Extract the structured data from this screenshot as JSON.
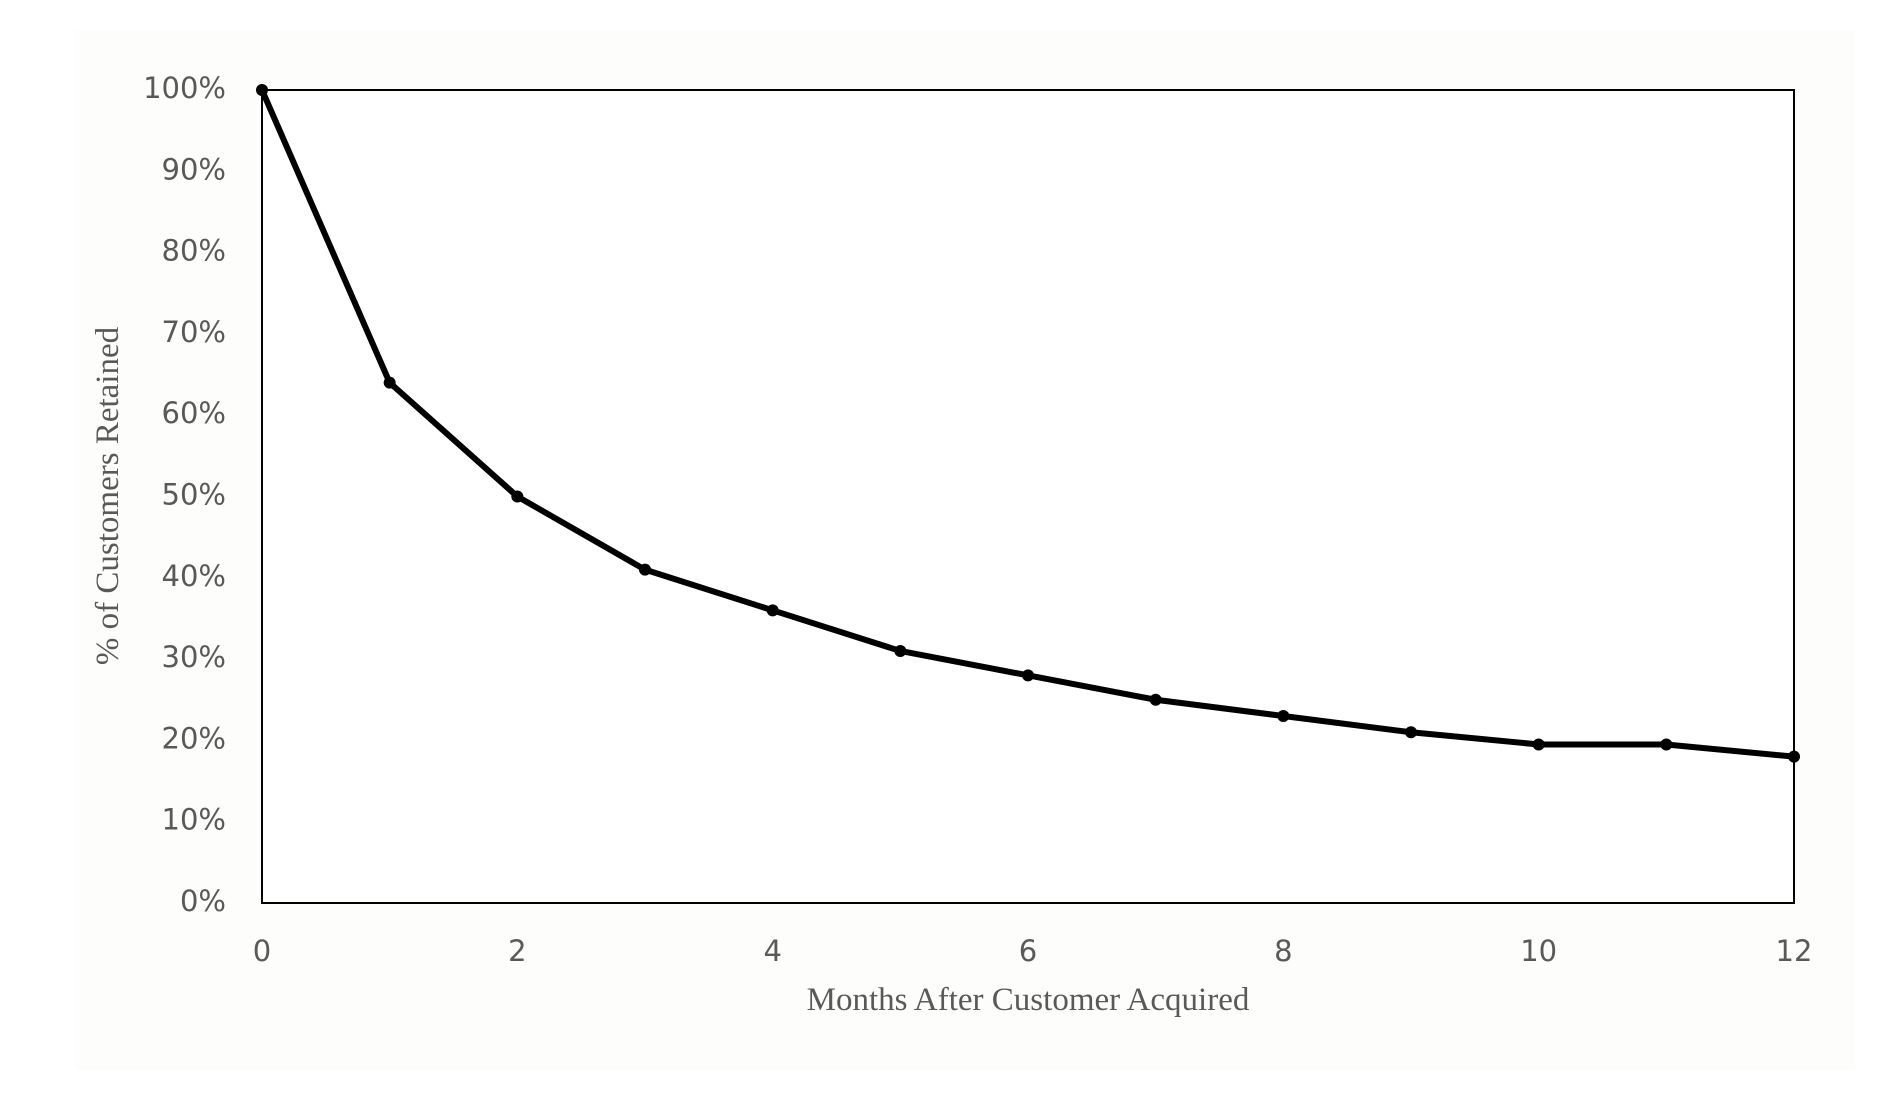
{
  "chart_data": {
    "type": "line",
    "x_label": "Months After Customer Acquired",
    "y_label": "% of Customers Retained",
    "x": [
      0,
      1,
      2,
      3,
      4,
      5,
      6,
      7,
      8,
      9,
      10,
      11,
      12
    ],
    "series": [
      {
        "color": "#000000",
        "values": [
          100,
          64,
          50,
          41,
          36,
          31,
          28,
          25,
          23,
          21,
          19.5,
          19.5,
          18
        ]
      }
    ],
    "xlim": [
      0,
      12
    ],
    "xticks": [
      0,
      2,
      4,
      6,
      8,
      10,
      12
    ],
    "ylim": [
      0,
      100
    ],
    "yticks": [
      {
        "value": 0,
        "label": "0%"
      },
      {
        "value": 10,
        "label": "10%"
      },
      {
        "value": 20,
        "label": "20%"
      },
      {
        "value": 30,
        "label": "30%"
      },
      {
        "value": 40,
        "label": "40%"
      },
      {
        "value": 50,
        "label": "50%"
      },
      {
        "value": 60,
        "label": "60%"
      },
      {
        "value": 70,
        "label": "70%"
      },
      {
        "value": 80,
        "label": "80%"
      },
      {
        "value": 90,
        "label": "90%"
      },
      {
        "value": 100,
        "label": "100%"
      }
    ],
    "grid": false
  }
}
